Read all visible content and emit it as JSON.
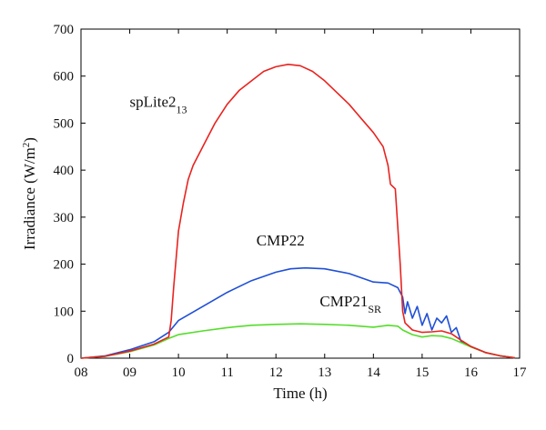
{
  "chart_data": {
    "type": "line",
    "xlabel": "Time (h)",
    "ylabel_main": "Irradiance (W/m",
    "ylabel_sup": "2",
    "ylabel_tail": ")",
    "xlim": [
      8,
      17
    ],
    "ylim": [
      0,
      700
    ],
    "xticks": [
      8,
      9,
      10,
      11,
      12,
      13,
      14,
      15,
      16,
      17
    ],
    "xtick_labels": [
      "08",
      "09",
      "10",
      "11",
      "12",
      "13",
      "14",
      "15",
      "16",
      "17"
    ],
    "yticks": [
      0,
      100,
      200,
      300,
      400,
      500,
      600,
      700
    ],
    "grid": false,
    "series": [
      {
        "key": "cmp22",
        "label_main": "CMP22",
        "label_sub": "",
        "color": "#1f4fd6",
        "label_at": [
          11.6,
          240
        ],
        "x": [
          8.0,
          8.5,
          9.0,
          9.5,
          9.8,
          10.0,
          10.5,
          11.0,
          11.5,
          12.0,
          12.3,
          12.6,
          13.0,
          13.5,
          14.0,
          14.3,
          14.5,
          14.6,
          14.65,
          14.7,
          14.8,
          14.9,
          15.0,
          15.1,
          15.2,
          15.3,
          15.4,
          15.5,
          15.6,
          15.7,
          15.8,
          16.0,
          16.3,
          16.6,
          16.9
        ],
        "y": [
          0,
          5,
          18,
          35,
          55,
          80,
          110,
          140,
          165,
          183,
          190,
          192,
          190,
          180,
          162,
          160,
          150,
          130,
          95,
          120,
          85,
          110,
          70,
          95,
          60,
          85,
          75,
          90,
          55,
          65,
          35,
          25,
          12,
          5,
          1
        ]
      },
      {
        "key": "cmp21",
        "label_main": "CMP21",
        "label_sub": "SR",
        "color": "#55dd2a",
        "label_at": [
          12.9,
          110
        ],
        "x": [
          8.0,
          8.5,
          9.0,
          9.5,
          9.8,
          10.0,
          10.5,
          11.0,
          11.5,
          12.0,
          12.5,
          13.0,
          13.5,
          14.0,
          14.3,
          14.5,
          14.6,
          14.8,
          15.0,
          15.2,
          15.4,
          15.6,
          15.8,
          16.0,
          16.3,
          16.6,
          16.9
        ],
        "y": [
          0,
          4,
          14,
          28,
          42,
          50,
          58,
          65,
          70,
          72,
          73,
          72,
          70,
          66,
          70,
          68,
          60,
          50,
          45,
          48,
          47,
          42,
          33,
          24,
          12,
          5,
          1
        ]
      },
      {
        "key": "splite",
        "label_main": "spLite2",
        "label_sub": "13",
        "color": "#e8231f",
        "label_at": [
          9.0,
          535
        ],
        "x": [
          8.0,
          8.5,
          9.0,
          9.5,
          9.8,
          9.85,
          9.9,
          10.0,
          10.1,
          10.2,
          10.3,
          10.5,
          10.75,
          11.0,
          11.25,
          11.5,
          11.75,
          12.0,
          12.25,
          12.5,
          12.75,
          13.0,
          13.25,
          13.5,
          13.75,
          14.0,
          14.2,
          14.3,
          14.35,
          14.45,
          14.55,
          14.6,
          14.65,
          14.8,
          15.0,
          15.2,
          15.4,
          15.6,
          15.8,
          16.0,
          16.3,
          16.6,
          16.9
        ],
        "y": [
          0,
          4,
          15,
          30,
          45,
          80,
          150,
          270,
          330,
          380,
          410,
          450,
          500,
          540,
          570,
          590,
          610,
          620,
          625,
          622,
          610,
          590,
          565,
          540,
          510,
          480,
          450,
          410,
          370,
          360,
          200,
          100,
          75,
          60,
          55,
          56,
          58,
          52,
          38,
          25,
          12,
          5,
          1
        ]
      }
    ]
  }
}
